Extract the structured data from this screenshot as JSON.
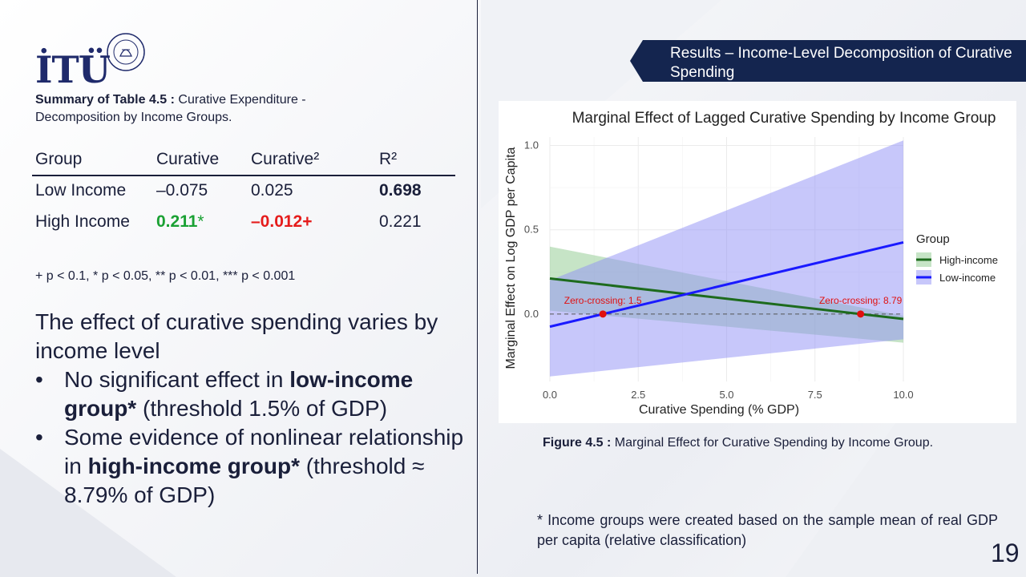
{
  "logo": {
    "text": "İTÜ"
  },
  "table": {
    "caption_bold": "Summary of Table 4.5 :",
    "caption_rest": " Curative Expenditure - Decomposition by Income Groups.",
    "headers": [
      "Group",
      "Curative",
      "Curative²",
      "R²"
    ],
    "rows": [
      {
        "group": "Low Income",
        "curative": "–0.075",
        "curative_sq": "0.025",
        "r2": "0.698"
      },
      {
        "group": "High Income",
        "curative": "0.211",
        "curative_star": "*",
        "curative_sq": "–0.012+",
        "r2": "0.221"
      }
    ],
    "significance_note": "+ p < 0.1, * p < 0.05, ** p < 0.01, *** p < 0.001"
  },
  "main": {
    "intro": "The effect of curative spending varies by income level",
    "bullet1_pre": "No significant effect in ",
    "bullet1_bold": "low-income group*",
    "bullet1_post": " (threshold 1.5% of GDP)",
    "bullet2_pre": "Some evidence of nonlinear relationship in ",
    "bullet2_bold": "high-income group*",
    "bullet2_post": " (threshold ≈ 8.79% of GDP)"
  },
  "banner": {
    "title": "Results – Income-Level Decomposition of Curative Spending",
    "color": "#14254f"
  },
  "figure": {
    "caption_bold": "Figure 4.5 :",
    "caption_rest": " Marginal Effect for Curative Spending by Income Group."
  },
  "footnote": "* Income groups were created based on the sample mean of real GDP per capita (relative classification)",
  "page_number": "19",
  "chart_data": {
    "type": "line",
    "title": "Marginal Effect of Lagged Curative Spending by Income Group",
    "xlabel": "Curative Spending (% GDP)",
    "ylabel": "Marginal Effect on Log GDP per Capita",
    "xlim": [
      0,
      10
    ],
    "ylim": [
      -0.4,
      1.05
    ],
    "x_ticks": [
      "0.0",
      "2.5",
      "5.0",
      "7.5",
      "10.0"
    ],
    "y_ticks": [
      "0.0",
      "0.5",
      "1.0"
    ],
    "legend_title": "Group",
    "legend_position": "right",
    "grid": true,
    "series": [
      {
        "name": "High-income",
        "color": "#1d6b1d",
        "band_color": "#8ec98e",
        "x": [
          0,
          10
        ],
        "y": [
          0.211,
          -0.029
        ],
        "ci_upper": [
          0.4,
          -0.01
        ],
        "ci_lower": [
          0.02,
          -0.17
        ]
      },
      {
        "name": "Low-income",
        "color": "#1a1aff",
        "band_color": "#8f8ff5",
        "x": [
          0,
          10
        ],
        "y": [
          -0.075,
          0.425
        ],
        "ci_upper": [
          0.2,
          1.03
        ],
        "ci_lower": [
          -0.37,
          -0.15
        ]
      }
    ],
    "zero_crossings": [
      {
        "x": 1.5,
        "y": 0,
        "label": "Zero-crossing: 1.5"
      },
      {
        "x": 8.79,
        "y": 0,
        "label": "Zero-crossing: 8.79"
      }
    ]
  }
}
